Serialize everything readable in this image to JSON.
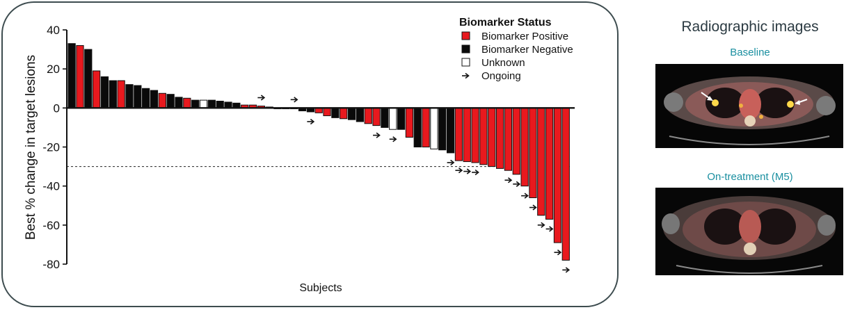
{
  "chart_data": {
    "type": "bar",
    "ylabel": "Best % change in target lesions",
    "xlabel": "Subjects",
    "ylim": [
      -80,
      40
    ],
    "yticks": [
      40,
      20,
      0,
      -20,
      -40,
      -60,
      -80
    ],
    "reference_line": -30,
    "legend": {
      "title": "Biomarker Status",
      "position": "top-right",
      "items": [
        {
          "key": "pos",
          "label": "Biomarker Positive",
          "color": "#e8191e"
        },
        {
          "key": "neg",
          "label": "Biomarker Negative",
          "color": "#0a0a0a"
        },
        {
          "key": "unk",
          "label": "Unknown",
          "color": "#ffffff"
        },
        {
          "key": "ongoing",
          "label": "Ongoing",
          "symbol": "→"
        }
      ]
    },
    "bars": [
      {
        "value": 33,
        "status": "neg",
        "ongoing": false
      },
      {
        "value": 32,
        "status": "pos",
        "ongoing": false
      },
      {
        "value": 30,
        "status": "neg",
        "ongoing": false
      },
      {
        "value": 19,
        "status": "pos",
        "ongoing": false
      },
      {
        "value": 16,
        "status": "neg",
        "ongoing": false
      },
      {
        "value": 14,
        "status": "neg",
        "ongoing": false
      },
      {
        "value": 14,
        "status": "pos",
        "ongoing": false
      },
      {
        "value": 12,
        "status": "neg",
        "ongoing": false
      },
      {
        "value": 11.5,
        "status": "neg",
        "ongoing": false
      },
      {
        "value": 10,
        "status": "neg",
        "ongoing": false
      },
      {
        "value": 9,
        "status": "neg",
        "ongoing": false
      },
      {
        "value": 7.5,
        "status": "pos",
        "ongoing": false
      },
      {
        "value": 7,
        "status": "neg",
        "ongoing": false
      },
      {
        "value": 5.5,
        "status": "neg",
        "ongoing": false
      },
      {
        "value": 5,
        "status": "pos",
        "ongoing": false
      },
      {
        "value": 4,
        "status": "neg",
        "ongoing": false
      },
      {
        "value": 4,
        "status": "unk",
        "ongoing": false
      },
      {
        "value": 4,
        "status": "neg",
        "ongoing": false
      },
      {
        "value": 3.5,
        "status": "neg",
        "ongoing": false
      },
      {
        "value": 3,
        "status": "neg",
        "ongoing": false
      },
      {
        "value": 2.5,
        "status": "neg",
        "ongoing": false
      },
      {
        "value": 1.5,
        "status": "pos",
        "ongoing": false
      },
      {
        "value": 1.5,
        "status": "pos",
        "ongoing": false
      },
      {
        "value": 1,
        "status": "pos",
        "ongoing": true
      },
      {
        "value": 0.5,
        "status": "pos",
        "ongoing": false
      },
      {
        "value": 0,
        "status": "neg",
        "ongoing": false
      },
      {
        "value": 0,
        "status": "neg",
        "ongoing": false
      },
      {
        "value": 0,
        "status": "neg",
        "ongoing": true
      },
      {
        "value": -1.5,
        "status": "neg",
        "ongoing": false
      },
      {
        "value": -2,
        "status": "neg",
        "ongoing": true
      },
      {
        "value": -2.5,
        "status": "pos",
        "ongoing": false
      },
      {
        "value": -4,
        "status": "pos",
        "ongoing": false
      },
      {
        "value": -5,
        "status": "neg",
        "ongoing": false
      },
      {
        "value": -5.5,
        "status": "pos",
        "ongoing": false
      },
      {
        "value": -6,
        "status": "neg",
        "ongoing": false
      },
      {
        "value": -7,
        "status": "neg",
        "ongoing": false
      },
      {
        "value": -8,
        "status": "pos",
        "ongoing": false
      },
      {
        "value": -9,
        "status": "pos",
        "ongoing": true
      },
      {
        "value": -10,
        "status": "neg",
        "ongoing": false
      },
      {
        "value": -11,
        "status": "unk",
        "ongoing": true
      },
      {
        "value": -11,
        "status": "neg",
        "ongoing": false
      },
      {
        "value": -15,
        "status": "pos",
        "ongoing": false
      },
      {
        "value": -20,
        "status": "neg",
        "ongoing": false
      },
      {
        "value": -20,
        "status": "pos",
        "ongoing": false
      },
      {
        "value": -21,
        "status": "unk",
        "ongoing": false
      },
      {
        "value": -21.5,
        "status": "neg",
        "ongoing": false
      },
      {
        "value": -23,
        "status": "neg",
        "ongoing": true
      },
      {
        "value": -27,
        "status": "pos",
        "ongoing": true
      },
      {
        "value": -27.5,
        "status": "pos",
        "ongoing": true
      },
      {
        "value": -28,
        "status": "pos",
        "ongoing": true
      },
      {
        "value": -29,
        "status": "pos",
        "ongoing": false
      },
      {
        "value": -30,
        "status": "pos",
        "ongoing": false
      },
      {
        "value": -31,
        "status": "pos",
        "ongoing": false
      },
      {
        "value": -32,
        "status": "pos",
        "ongoing": true
      },
      {
        "value": -34,
        "status": "pos",
        "ongoing": true
      },
      {
        "value": -40,
        "status": "pos",
        "ongoing": true
      },
      {
        "value": -46,
        "status": "pos",
        "ongoing": true
      },
      {
        "value": -55,
        "status": "pos",
        "ongoing": true
      },
      {
        "value": -57,
        "status": "pos",
        "ongoing": true
      },
      {
        "value": -69,
        "status": "pos",
        "ongoing": true
      },
      {
        "value": -78,
        "status": "pos",
        "ongoing": true
      }
    ]
  },
  "right_panel": {
    "title": "Radiographic images",
    "images": [
      {
        "caption": "Baseline",
        "icon": "ct-scan-baseline"
      },
      {
        "caption": "On-treatment (M5)",
        "icon": "ct-scan-on-treatment"
      }
    ]
  }
}
